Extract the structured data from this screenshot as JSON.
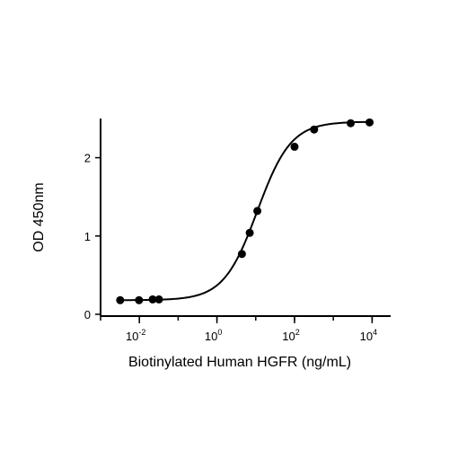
{
  "chart_data": {
    "type": "scatter",
    "title": "",
    "xlabel": "Biotinylated Human HGFR (ng/mL)",
    "ylabel": "OD 450nm",
    "x_scale": "log10",
    "xlim": [
      0.001,
      30000
    ],
    "ylim": [
      0,
      2.5
    ],
    "x_ticks": [
      {
        "value": 0.01,
        "base": "10",
        "exp": "-2"
      },
      {
        "value": 1,
        "base": "10",
        "exp": "0"
      },
      {
        "value": 100,
        "base": "10",
        "exp": "2"
      },
      {
        "value": 10000,
        "base": "10",
        "exp": "4"
      }
    ],
    "y_ticks": [
      {
        "value": 0,
        "label": "0"
      },
      {
        "value": 1,
        "label": "1"
      },
      {
        "value": 2,
        "label": "2"
      }
    ],
    "series": [
      {
        "points": [
          {
            "x": 0.0032,
            "y": 0.18
          },
          {
            "x": 0.0098,
            "y": 0.18
          },
          {
            "x": 0.022,
            "y": 0.19
          },
          {
            "x": 0.032,
            "y": 0.19
          },
          {
            "x": 4.4,
            "y": 0.77
          },
          {
            "x": 7.0,
            "y": 1.04
          },
          {
            "x": 11.0,
            "y": 1.32
          },
          {
            "x": 100,
            "y": 2.14
          },
          {
            "x": 320,
            "y": 2.36
          },
          {
            "x": 2800,
            "y": 2.44
          },
          {
            "x": 8600,
            "y": 2.45
          }
        ],
        "fit": {
          "model": "4PL",
          "bottom": 0.18,
          "top": 2.46,
          "ec50": 11.0,
          "hill": 1.0
        }
      }
    ],
    "grid": false,
    "legend": "none"
  }
}
